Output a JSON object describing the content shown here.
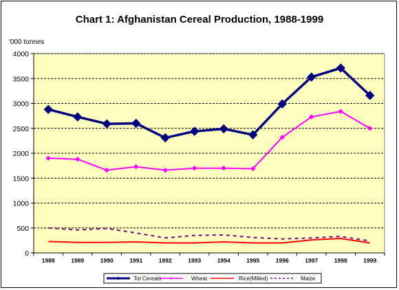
{
  "chart_data": {
    "type": "line",
    "title": "Chart 1: Afghanistan Cereal Production, 1988-1999",
    "unit_label": "'000 tonnes",
    "x": [
      "1988",
      "1989",
      "1990",
      "1991",
      "1992",
      "1993",
      "1994",
      "1995",
      "1996",
      "1997",
      "1998",
      "1999"
    ],
    "ylim": [
      0,
      4000
    ],
    "yticks": [
      0,
      500,
      1000,
      1500,
      2000,
      2500,
      3000,
      3500,
      4000
    ],
    "grid": true,
    "legend_position": "bottom",
    "plot_background": "#ffffc0",
    "series": [
      {
        "name": "Tot Cereals",
        "color": "#00007f",
        "style": "solid-diamond",
        "values": [
          2880,
          2730,
          2590,
          2600,
          2310,
          2440,
          2490,
          2370,
          2990,
          3530,
          3710,
          3160
        ]
      },
      {
        "name": "Wheat",
        "color": "#ff00ff",
        "style": "solid-small-marker",
        "values": [
          1900,
          1880,
          1660,
          1730,
          1660,
          1700,
          1700,
          1690,
          2320,
          2730,
          2840,
          2500
        ]
      },
      {
        "name": "Rice(Milled)",
        "color": "#ff0000",
        "style": "solid",
        "values": [
          230,
          210,
          210,
          220,
          200,
          200,
          220,
          200,
          200,
          260,
          290,
          200
        ]
      },
      {
        "name": "Maize",
        "color": "#7f007f",
        "style": "dashed",
        "values": [
          500,
          460,
          490,
          400,
          300,
          350,
          360,
          310,
          280,
          300,
          330,
          240
        ]
      }
    ]
  }
}
